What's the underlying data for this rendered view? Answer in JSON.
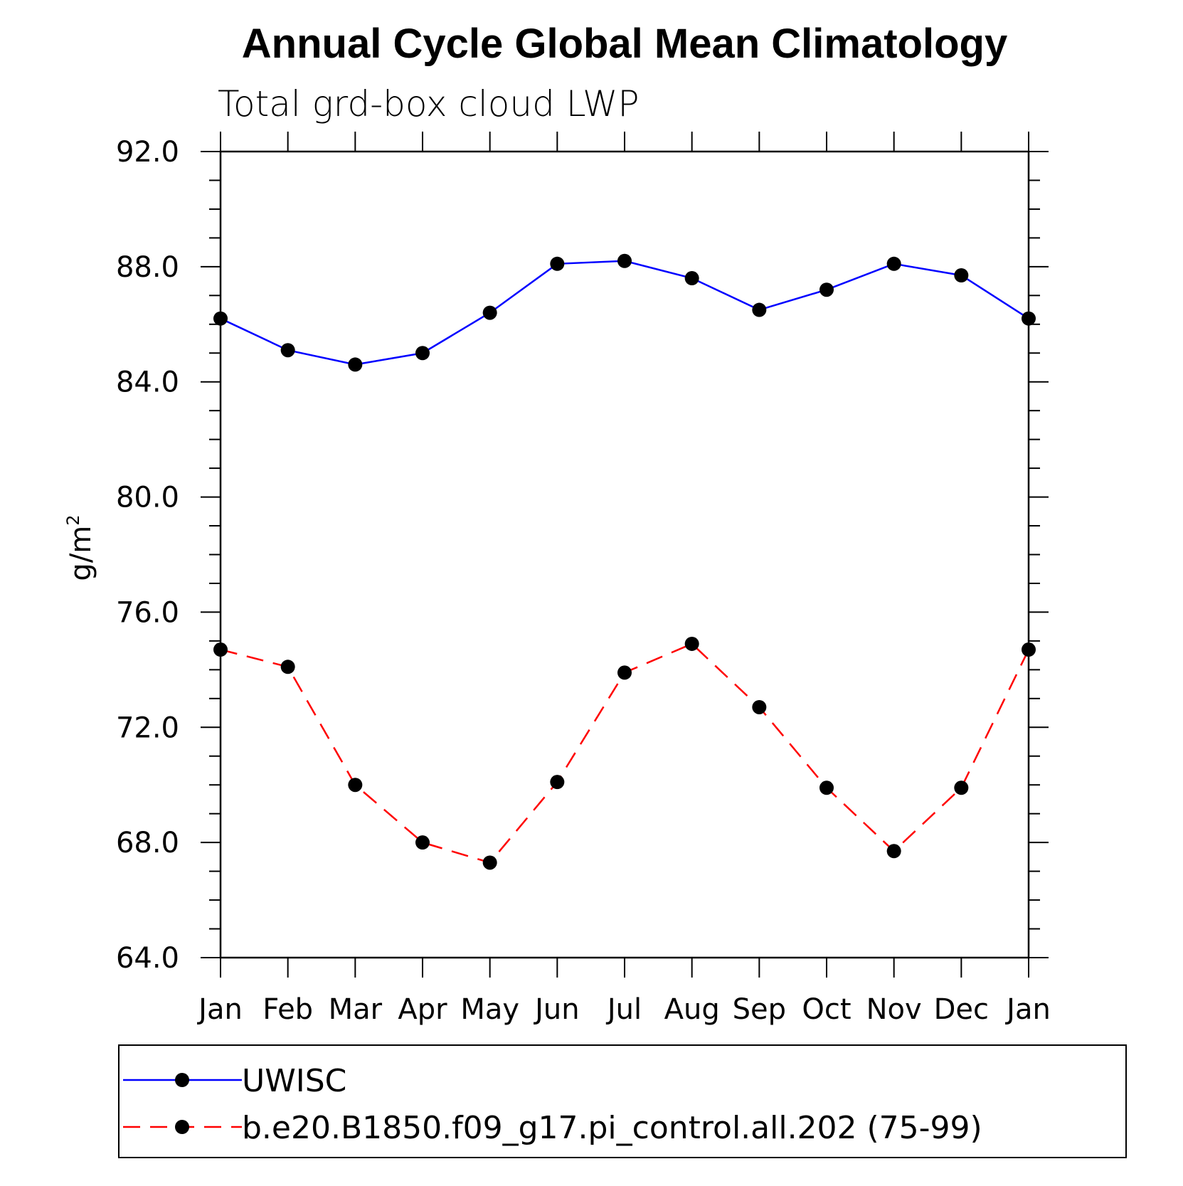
{
  "chart_data": {
    "type": "line",
    "title": "Annual Cycle Global Mean Climatology",
    "subtitle": "Total grd-box cloud LWP",
    "ylabel": "g/m",
    "ylabel_superscript": "2",
    "xlabel": "",
    "categories": [
      "Jan",
      "Feb",
      "Mar",
      "Apr",
      "May",
      "Jun",
      "Jul",
      "Aug",
      "Sep",
      "Oct",
      "Nov",
      "Dec",
      "Jan"
    ],
    "ylim": [
      64.0,
      92.0
    ],
    "yticks": [
      "64.0",
      "68.0",
      "72.0",
      "76.0",
      "80.0",
      "84.0",
      "88.0",
      "92.0"
    ],
    "yticks_values": [
      64,
      68,
      72,
      76,
      80,
      84,
      88,
      92
    ],
    "series": [
      {
        "name": "UWISC",
        "color": "#0000ff",
        "dash": "solid",
        "marker_color": "#000000",
        "values": [
          86.2,
          85.1,
          84.6,
          85.0,
          86.4,
          88.1,
          88.2,
          87.6,
          86.5,
          87.2,
          88.1,
          87.7,
          86.2
        ]
      },
      {
        "name": "b.e20.B1850.f09_g17.pi_control.all.202 (75-99)",
        "color": "#ff0000",
        "dash": "dashed",
        "marker_color": "#000000",
        "values": [
          74.7,
          74.1,
          70.0,
          68.0,
          67.3,
          70.1,
          73.9,
          74.9,
          72.7,
          69.9,
          67.7,
          69.9,
          74.7
        ]
      }
    ],
    "grid": false,
    "legend_position": "bottom"
  }
}
